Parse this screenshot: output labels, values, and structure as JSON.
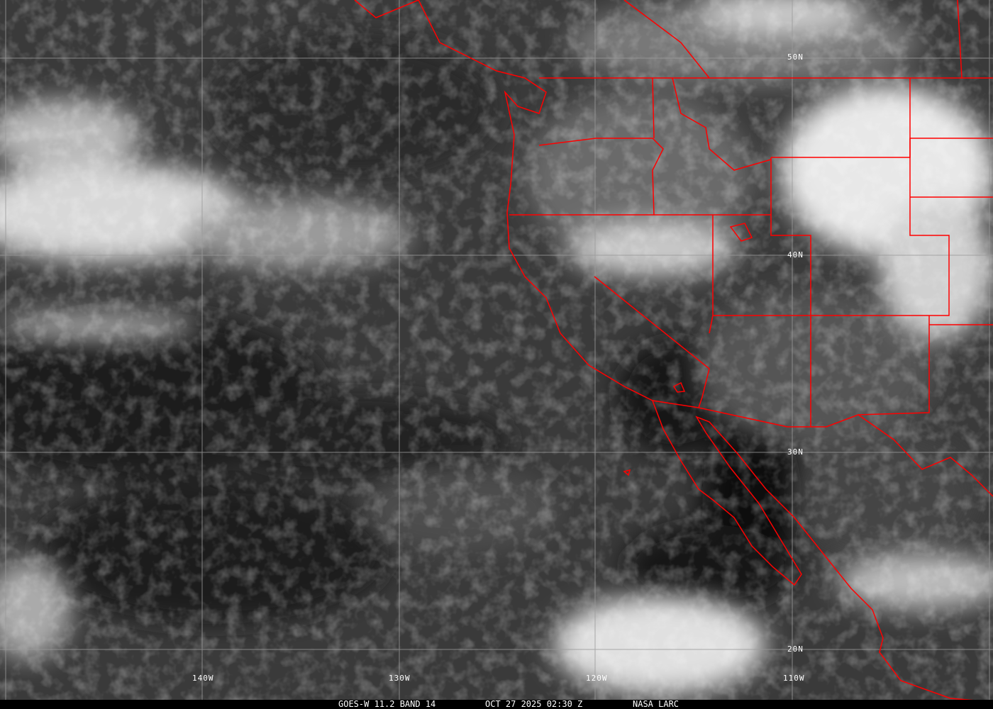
{
  "image": {
    "type": "satellite infrared imagery",
    "colors": {
      "borders": "#ff0000",
      "grid": "#9a9a9a",
      "labels": "#ffffff"
    }
  },
  "grid_labels": {
    "longitudes": [
      "140W",
      "130W",
      "120W",
      "110W"
    ],
    "latitudes": [
      "50N",
      "40N",
      "30N",
      "20N"
    ]
  },
  "caption": {
    "satellite": "GOES-W 11.2 BAND 14",
    "datetime": "OCT 27 2025 02:30 Z",
    "source": "NASA LARC"
  }
}
